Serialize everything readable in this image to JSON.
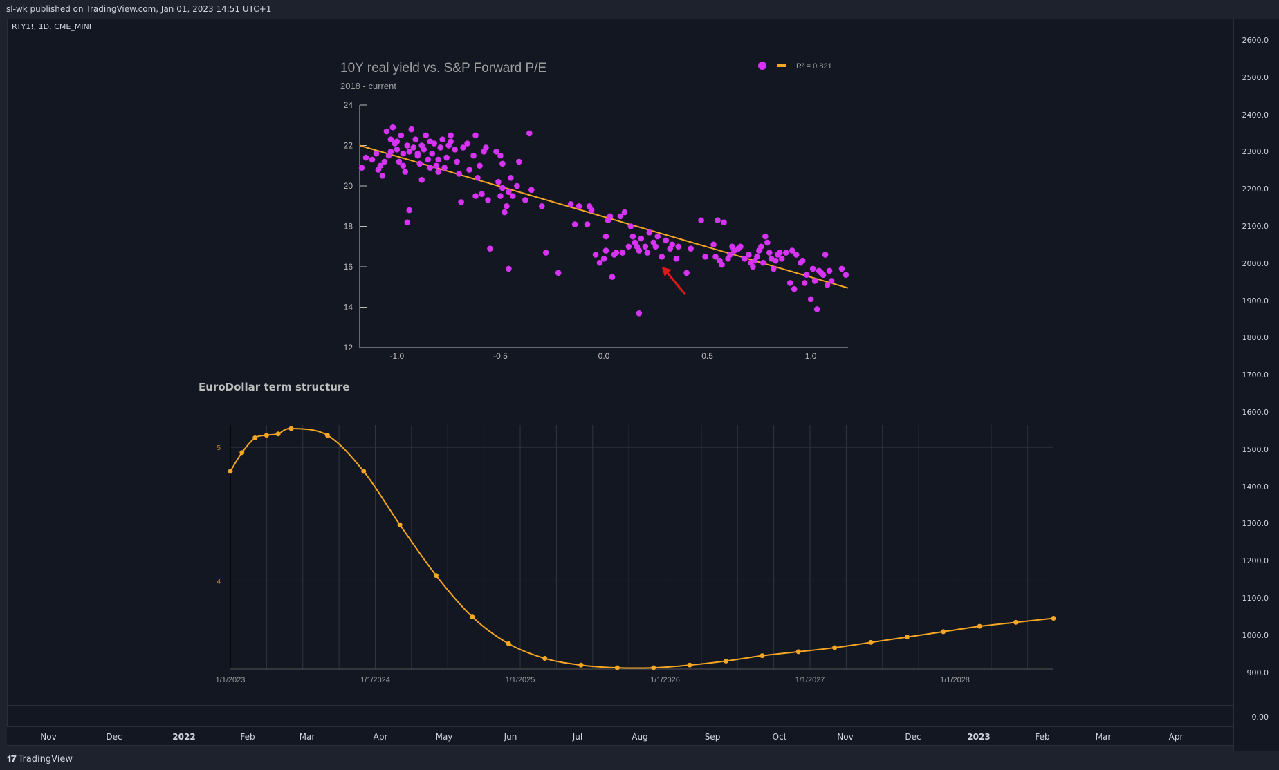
{
  "header": {
    "published": "sl-wk published on TradingView.com, Jan 01, 2023 14:51 UTC+1"
  },
  "symbol": "RTY1!, 1D, CME_MINI",
  "price_axis": [
    "2600.0",
    "2500.0",
    "2400.0",
    "2300.0",
    "2200.0",
    "2100.0",
    "2000.0",
    "1900.0",
    "1800.0",
    "1700.0",
    "1600.0",
    "1500.0",
    "1400.0",
    "1300.0",
    "1200.0",
    "1100.0",
    "1000.0",
    "900.0"
  ],
  "lower_pane_value": "0.00",
  "time_axis": [
    {
      "label": "Nov",
      "bold": false
    },
    {
      "label": "Dec",
      "bold": false
    },
    {
      "label": "2022",
      "bold": true
    },
    {
      "label": "Feb",
      "bold": false
    },
    {
      "label": "Mar",
      "bold": false
    },
    {
      "label": "Apr",
      "bold": false
    },
    {
      "label": "May",
      "bold": false
    },
    {
      "label": "Jun",
      "bold": false
    },
    {
      "label": "Jul",
      "bold": false
    },
    {
      "label": "Aug",
      "bold": false
    },
    {
      "label": "Sep",
      "bold": false
    },
    {
      "label": "Oct",
      "bold": false
    },
    {
      "label": "Nov",
      "bold": false
    },
    {
      "label": "Dec",
      "bold": false
    },
    {
      "label": "2023",
      "bold": true
    },
    {
      "label": "Feb",
      "bold": false
    },
    {
      "label": "Mar",
      "bold": false
    },
    {
      "label": "Apr",
      "bold": false
    }
  ],
  "footer": {
    "brand": "TradingView"
  },
  "colors": {
    "scatter": "#d633f5",
    "fit": "#f5a623",
    "curve": "#f5a623",
    "arrow": "#e01919"
  },
  "chart_data": [
    {
      "type": "scatter",
      "title": "10Y real yield vs. S&P Forward P/E",
      "subtitle": "2018 - current",
      "legend": {
        "fit_label": "R² = 0.821",
        "placement": "top-right"
      },
      "xlim": [
        -1.18,
        1.18
      ],
      "ylim": [
        12,
        24
      ],
      "xticks": [
        "-1.0",
        "-0.5",
        "0.0",
        "0.5",
        "1.0"
      ],
      "yticks": [
        "12",
        "14",
        "16",
        "18",
        "20",
        "22",
        "24"
      ],
      "fit_line": {
        "x": [
          -1.18,
          1.18
        ],
        "y": [
          22.0,
          14.95
        ]
      },
      "annotation": "red arrow pointing to x=0.28, y=16.2",
      "points": [
        [
          -1.17,
          20.9
        ],
        [
          -1.15,
          21.4
        ],
        [
          -1.12,
          21.3
        ],
        [
          -1.1,
          21.6
        ],
        [
          -1.09,
          20.8
        ],
        [
          -1.08,
          21.0
        ],
        [
          -1.07,
          20.5
        ],
        [
          -1.06,
          21.2
        ],
        [
          -1.05,
          22.7
        ],
        [
          -1.04,
          21.5
        ],
        [
          -1.03,
          22.3
        ],
        [
          -1.02,
          22.9
        ],
        [
          -1.01,
          22.1
        ],
        [
          -1.0,
          21.8
        ],
        [
          -0.99,
          21.2
        ],
        [
          -0.98,
          22.5
        ],
        [
          -0.97,
          21.0
        ],
        [
          -0.96,
          20.7
        ],
        [
          -0.95,
          22.0
        ],
        [
          -0.94,
          21.7
        ],
        [
          -0.93,
          22.8
        ],
        [
          -0.92,
          21.9
        ],
        [
          -0.91,
          22.3
        ],
        [
          -0.9,
          21.5
        ],
        [
          -0.89,
          21.1
        ],
        [
          -0.88,
          20.3
        ],
        [
          -0.87,
          21.8
        ],
        [
          -0.86,
          22.5
        ],
        [
          -0.85,
          21.3
        ],
        [
          -0.84,
          20.9
        ],
        [
          -0.83,
          21.6
        ],
        [
          -0.82,
          22.1
        ],
        [
          -0.81,
          21.0
        ],
        [
          -0.8,
          20.7
        ],
        [
          -0.79,
          21.9
        ],
        [
          -0.78,
          22.3
        ],
        [
          -0.77,
          20.9
        ],
        [
          -0.76,
          21.4
        ],
        [
          -0.75,
          22.0
        ],
        [
          -0.74,
          22.5
        ],
        [
          -0.72,
          21.8
        ],
        [
          -0.71,
          21.2
        ],
        [
          -0.7,
          20.6
        ],
        [
          -0.69,
          19.2
        ],
        [
          -0.68,
          21.9
        ],
        [
          -0.66,
          22.1
        ],
        [
          -0.65,
          20.8
        ],
        [
          -0.63,
          21.5
        ],
        [
          -0.62,
          22.5
        ],
        [
          -0.61,
          20.4
        ],
        [
          -0.6,
          21.0
        ],
        [
          -0.59,
          19.6
        ],
        [
          -0.57,
          21.9
        ],
        [
          -0.56,
          19.3
        ],
        [
          -0.55,
          16.9
        ],
        [
          -0.52,
          21.7
        ],
        [
          -0.5,
          19.5
        ],
        [
          -0.49,
          21.1
        ],
        [
          -0.48,
          18.7
        ],
        [
          -0.47,
          19.0
        ],
        [
          -0.46,
          19.7
        ],
        [
          -0.45,
          20.4
        ],
        [
          -0.44,
          19.5
        ],
        [
          -0.42,
          20.0
        ],
        [
          -0.41,
          21.2
        ],
        [
          -0.38,
          19.3
        ],
        [
          -0.36,
          22.6
        ],
        [
          -0.35,
          19.8
        ],
        [
          -0.5,
          21.5
        ],
        [
          -0.49,
          19.9
        ],
        [
          -0.51,
          20.2
        ],
        [
          -0.46,
          15.9
        ],
        [
          -0.28,
          16.7
        ],
        [
          -0.22,
          15.7
        ],
        [
          -0.16,
          19.1
        ],
        [
          -0.14,
          18.1
        ],
        [
          -0.12,
          19.0
        ],
        [
          -0.08,
          18.1
        ],
        [
          -0.07,
          19.0
        ],
        [
          -0.06,
          18.8
        ],
        [
          -0.04,
          16.6
        ],
        [
          -0.02,
          16.2
        ],
        [
          0.0,
          16.4
        ],
        [
          0.01,
          17.5
        ],
        [
          0.01,
          16.8
        ],
        [
          0.02,
          18.3
        ],
        [
          0.03,
          18.5
        ],
        [
          0.04,
          15.5
        ],
        [
          0.05,
          16.6
        ],
        [
          0.06,
          16.7
        ],
        [
          0.08,
          18.5
        ],
        [
          0.09,
          16.7
        ],
        [
          0.1,
          18.7
        ],
        [
          0.12,
          17.0
        ],
        [
          0.13,
          18.0
        ],
        [
          0.14,
          17.5
        ],
        [
          0.15,
          17.2
        ],
        [
          0.16,
          17.0
        ],
        [
          0.17,
          16.8
        ],
        [
          0.18,
          17.4
        ],
        [
          0.2,
          17.0
        ],
        [
          0.21,
          16.7
        ],
        [
          0.22,
          17.7
        ],
        [
          0.24,
          17.2
        ],
        [
          0.25,
          17.0
        ],
        [
          0.26,
          17.5
        ],
        [
          0.28,
          16.5
        ],
        [
          0.3,
          17.3
        ],
        [
          0.32,
          16.9
        ],
        [
          0.33,
          17.1
        ],
        [
          0.35,
          16.4
        ],
        [
          0.36,
          17.0
        ],
        [
          0.4,
          15.7
        ],
        [
          0.42,
          16.9
        ],
        [
          0.47,
          18.3
        ],
        [
          0.49,
          16.5
        ],
        [
          0.53,
          17.1
        ],
        [
          0.54,
          16.5
        ],
        [
          0.55,
          18.3
        ],
        [
          0.56,
          16.3
        ],
        [
          0.57,
          16.1
        ],
        [
          0.58,
          18.2
        ],
        [
          0.6,
          16.4
        ],
        [
          0.61,
          16.6
        ],
        [
          0.62,
          17.0
        ],
        [
          0.63,
          16.8
        ],
        [
          0.65,
          16.9
        ],
        [
          0.66,
          17.0
        ],
        [
          0.68,
          16.4
        ],
        [
          0.7,
          16.6
        ],
        [
          0.71,
          16.2
        ],
        [
          0.72,
          16.0
        ],
        [
          0.73,
          16.3
        ],
        [
          0.74,
          16.5
        ],
        [
          0.75,
          16.8
        ],
        [
          0.76,
          17.0
        ],
        [
          0.77,
          16.2
        ],
        [
          0.78,
          17.5
        ],
        [
          0.79,
          17.2
        ],
        [
          0.8,
          16.7
        ],
        [
          0.81,
          16.4
        ],
        [
          0.82,
          15.9
        ],
        [
          0.83,
          16.3
        ],
        [
          0.84,
          16.6
        ],
        [
          0.85,
          16.7
        ],
        [
          0.86,
          16.4
        ],
        [
          0.88,
          16.7
        ],
        [
          0.9,
          15.2
        ],
        [
          0.91,
          16.8
        ],
        [
          0.92,
          14.9
        ],
        [
          0.93,
          16.6
        ],
        [
          0.95,
          16.2
        ],
        [
          0.96,
          16.3
        ],
        [
          0.97,
          15.2
        ],
        [
          0.98,
          15.6
        ],
        [
          1.0,
          14.4
        ],
        [
          1.01,
          15.9
        ],
        [
          1.02,
          15.3
        ],
        [
          1.03,
          13.9
        ],
        [
          1.04,
          15.8
        ],
        [
          1.05,
          15.7
        ],
        [
          1.06,
          15.6
        ],
        [
          1.07,
          16.6
        ],
        [
          1.08,
          15.1
        ],
        [
          1.09,
          15.8
        ],
        [
          1.1,
          15.3
        ],
        [
          1.15,
          15.9
        ],
        [
          1.17,
          15.6
        ],
        [
          0.17,
          13.7
        ],
        [
          -0.95,
          18.2
        ],
        [
          -0.94,
          18.8
        ],
        [
          -0.9,
          21.6
        ],
        [
          -0.88,
          22.0
        ],
        [
          -1.03,
          21.7
        ],
        [
          -1.0,
          22.2
        ],
        [
          -0.97,
          21.6
        ],
        [
          -0.84,
          22.2
        ],
        [
          -0.8,
          21.3
        ],
        [
          -0.74,
          22.2
        ],
        [
          -0.58,
          21.7
        ],
        [
          -0.62,
          19.5
        ],
        [
          -0.3,
          19.0
        ]
      ]
    },
    {
      "type": "line",
      "title": "EuroDollar term structure",
      "yticks": [
        "5",
        "4"
      ],
      "xticks": [
        "1/1/2023",
        "1/1/2024",
        "1/1/2025",
        "1/1/2026",
        "1/1/2027",
        "1/1/2028"
      ],
      "xlim": [
        2023.0,
        2028.68
      ],
      "ylim": [
        3.34,
        5.14
      ],
      "series": [
        {
          "x": [
            2023.0,
            2023.08,
            2023.17,
            2023.25,
            2023.33,
            2023.42,
            2023.67,
            2023.92,
            2024.17,
            2024.42,
            2024.67,
            2024.92,
            2025.17,
            2025.42,
            2025.67,
            2025.92,
            2026.17,
            2026.42,
            2026.67,
            2026.92,
            2027.17,
            2027.42,
            2027.67,
            2027.92,
            2028.17,
            2028.42,
            2028.68
          ],
          "y": [
            4.82,
            4.96,
            5.07,
            5.09,
            5.1,
            5.14,
            5.09,
            4.82,
            4.42,
            4.04,
            3.73,
            3.53,
            3.42,
            3.37,
            3.35,
            3.35,
            3.37,
            3.4,
            3.44,
            3.47,
            3.5,
            3.54,
            3.58,
            3.62,
            3.66,
            3.69,
            3.72
          ]
        }
      ]
    }
  ]
}
